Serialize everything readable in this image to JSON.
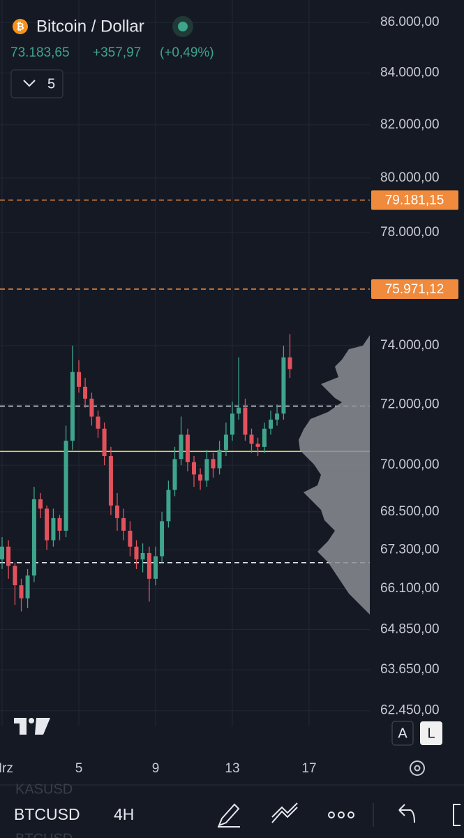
{
  "header": {
    "symbol_name": "Bitcoin / Dollar",
    "price": "73.183,65",
    "change": "+357,97",
    "change_pct": "(+0,49%)",
    "interval_count": "5"
  },
  "chart_data": {
    "type": "candlestick",
    "log_scale": true,
    "colors": {
      "up": "#3fa48c",
      "down": "#e2525c",
      "grid": "#222735"
    },
    "ylim": [
      62000,
      86900
    ],
    "yticks": [
      {
        "value": 86000,
        "label": "86.000,00"
      },
      {
        "value": 84000,
        "label": "84.000,00"
      },
      {
        "value": 82000,
        "label": "82.000,00"
      },
      {
        "value": 80000,
        "label": "80.000,00"
      },
      {
        "value": 78000,
        "label": "78.000,00"
      },
      {
        "value": 74000,
        "label": "74.000,00"
      },
      {
        "value": 72000,
        "label": "72.000,00"
      },
      {
        "value": 70000,
        "label": "70.000,00"
      },
      {
        "value": 68500,
        "label": "68.500,00"
      },
      {
        "value": 67300,
        "label": "67.300,00"
      },
      {
        "value": 66100,
        "label": "66.100,00"
      },
      {
        "value": 64850,
        "label": "64.850,00"
      },
      {
        "value": 63650,
        "label": "63.650,00"
      },
      {
        "value": 62450,
        "label": "62.450,00"
      }
    ],
    "price_tags": [
      {
        "value": 79181.15,
        "label": "79.181,15"
      },
      {
        "value": 75971.12,
        "label": "75.971,12"
      }
    ],
    "dashed_levels": [
      71950,
      66900
    ],
    "yellow_level": 70450,
    "xlim": [
      0.9,
      19
    ],
    "xticks": [
      {
        "value": 1,
        "label": "Mrz"
      },
      5,
      9,
      13,
      17
    ],
    "x": [
      1,
      1.33,
      1.67,
      2,
      2.33,
      2.67,
      3,
      3.33,
      3.67,
      4,
      4.33,
      4.67,
      5,
      5.33,
      5.67,
      6,
      6.33,
      6.67,
      7,
      7.33,
      7.67,
      8,
      8.33,
      8.67,
      9,
      9.33,
      9.67,
      10,
      10.33,
      10.67,
      11,
      11.33,
      11.67,
      12,
      12.33,
      12.67,
      13,
      13.33,
      13.67,
      14,
      14.33,
      14.67,
      15,
      15.33,
      15.67,
      16
    ],
    "open": [
      67000,
      67400,
      66800,
      66200,
      65800,
      66500,
      68900,
      68600,
      67600,
      68300,
      67900,
      70800,
      73100,
      72600,
      72200,
      71600,
      71200,
      70300,
      68700,
      68300,
      67900,
      67400,
      67000,
      67200,
      66400,
      67100,
      68200,
      69200,
      70200,
      71000,
      70100,
      69700,
      69500,
      70200,
      69900,
      70500,
      71000,
      71700,
      71900,
      71000,
      70700,
      70600,
      71200,
      71500,
      71700,
      73600
    ],
    "high": [
      67700,
      67600,
      66900,
      66400,
      66700,
      69300,
      69100,
      68700,
      68600,
      68400,
      71300,
      74000,
      73500,
      72900,
      72400,
      71800,
      71400,
      70600,
      69100,
      68600,
      68200,
      67600,
      67500,
      67400,
      67400,
      68500,
      69500,
      70600,
      71600,
      71200,
      70300,
      69900,
      70500,
      70400,
      70800,
      71400,
      72100,
      73600,
      72200,
      71200,
      70900,
      71400,
      71800,
      72000,
      74000,
      74400
    ],
    "low": [
      66700,
      66400,
      65600,
      65400,
      65500,
      66300,
      68300,
      67300,
      67400,
      67600,
      67700,
      70500,
      72400,
      71900,
      71300,
      70900,
      70000,
      68400,
      67900,
      67600,
      67100,
      66700,
      66600,
      65700,
      66200,
      66900,
      68000,
      69000,
      70000,
      69800,
      69300,
      69200,
      69300,
      69600,
      69700,
      70300,
      70800,
      71500,
      70800,
      70400,
      70300,
      70400,
      71000,
      71300,
      71500,
      72900
    ],
    "close": [
      67400,
      66800,
      66200,
      65800,
      66500,
      68900,
      68600,
      67600,
      68300,
      67900,
      70800,
      73100,
      72600,
      72200,
      71600,
      71200,
      70300,
      68700,
      68300,
      67900,
      67400,
      67000,
      67200,
      66400,
      67100,
      68200,
      69200,
      70200,
      71000,
      70100,
      69700,
      69500,
      70200,
      69900,
      70500,
      71000,
      71700,
      71900,
      71000,
      70700,
      70600,
      71200,
      71500,
      71700,
      73600,
      73200
    ]
  },
  "scale_buttons": [
    "A",
    "L"
  ],
  "toolbar": {
    "ghost_above": "KASUSD",
    "symbol": "BTCUSD",
    "interval": "4H",
    "ghost_below": "BTCUSD"
  }
}
